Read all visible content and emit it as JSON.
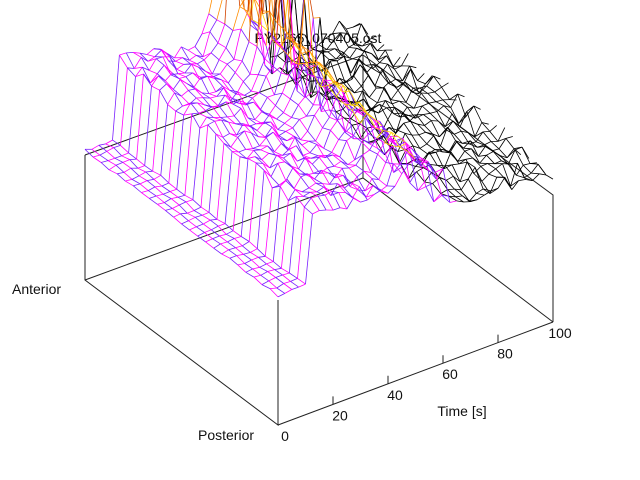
{
  "chart_data": {
    "type": "surface",
    "title": "PY2165_070405.ost",
    "xlabel": "Time [s]",
    "ylabel_top": "Anterior",
    "ylabel_bottom": "Posterior",
    "x_ticks": [
      "0",
      "20",
      "40",
      "60",
      "80",
      "100"
    ],
    "x_range": [
      0,
      100
    ],
    "y_range": [
      "Posterior",
      "Anterior"
    ],
    "grid": false,
    "colormap": [
      "#ff00ff",
      "#7a1fff",
      "#d24400",
      "#ff8c00",
      "#ffd200",
      "#000000"
    ]
  }
}
